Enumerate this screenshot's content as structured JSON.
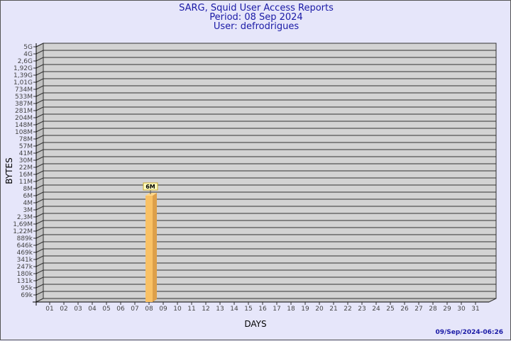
{
  "header": {
    "title": "SARG, Squid User Access Reports",
    "period": "Period: 08 Sep 2024",
    "user": "User: defrodrigues"
  },
  "footer": {
    "timestamp": "09/Sep/2024-06:26"
  },
  "colors": {
    "background": "#e6e6fa",
    "plot": "#d3d3d3",
    "bar": "#f9c165",
    "bar_side": "#dda04a",
    "title": "#1a1aa6"
  },
  "chart_data": {
    "type": "bar",
    "xlabel": "DAYS",
    "ylabel": "BYTES",
    "y_scale": "log",
    "y_ticks": [
      "5G",
      "4G",
      "2,6G",
      "1,92G",
      "1,39G",
      "1,01G",
      "734M",
      "533M",
      "387M",
      "281M",
      "204M",
      "148M",
      "108M",
      "78M",
      "57M",
      "41M",
      "30M",
      "22M",
      "16M",
      "11M",
      "8M",
      "6M",
      "4M",
      "3M",
      "2,3M",
      "1,69M",
      "1,22M",
      "889k",
      "646k",
      "469k",
      "341k",
      "247k",
      "180k",
      "131k",
      "95k",
      "69k"
    ],
    "categories": [
      "01",
      "02",
      "03",
      "04",
      "05",
      "06",
      "07",
      "08",
      "09",
      "10",
      "11",
      "12",
      "13",
      "14",
      "15",
      "16",
      "17",
      "18",
      "19",
      "20",
      "21",
      "22",
      "23",
      "24",
      "25",
      "26",
      "27",
      "28",
      "29",
      "30",
      "31"
    ],
    "bars": [
      {
        "day": "08",
        "value": "6M",
        "label": "6M"
      }
    ],
    "grid": true
  }
}
